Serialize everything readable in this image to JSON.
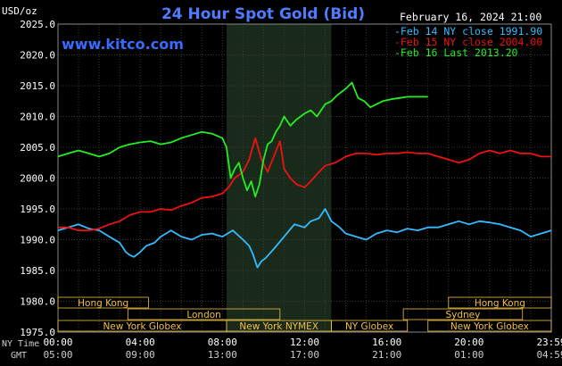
{
  "header": {
    "units_label": "USD/oz",
    "title": "24 Hour Spot Gold (Bid)",
    "date_label": "February 16, 2024 21:00",
    "site_label": "www.kitco.com"
  },
  "colors": {
    "background": "#000000",
    "plot_background": "#000000",
    "market_shade": "#1a2a1a",
    "grid": "#3a3a3a",
    "axis_text": "#ffffff",
    "title": "#4f7bff",
    "site": "#3a6bff",
    "session_text": "#f0c040",
    "session_border": "#f0c040",
    "feb14": "#33bbff",
    "feb15": "#ee1111",
    "feb16": "#22ee22"
  },
  "chart_data": {
    "type": "line",
    "ylim": [
      1975,
      2025
    ],
    "xlim": [
      0,
      24
    ],
    "y_ticks": [
      {
        "value": 2025,
        "label": "2025.0"
      },
      {
        "value": 2020,
        "label": "2020.0"
      },
      {
        "value": 2015,
        "label": "2015.0"
      },
      {
        "value": 2010,
        "label": "2010.0"
      },
      {
        "value": 2005,
        "label": "2005.0"
      },
      {
        "value": 2000,
        "label": "2000.0"
      },
      {
        "value": 1995,
        "label": "1995.0"
      },
      {
        "value": 1990,
        "label": "1990.0"
      },
      {
        "value": 1985,
        "label": "1985.0"
      },
      {
        "value": 1980,
        "label": "1980.0"
      },
      {
        "value": 1975,
        "label": "1975.0"
      }
    ],
    "x_ticks_ny": [
      {
        "value": 0,
        "label": "00:00"
      },
      {
        "value": 4,
        "label": "04:00"
      },
      {
        "value": 8,
        "label": "08:00"
      },
      {
        "value": 12,
        "label": "12:00"
      },
      {
        "value": 16,
        "label": "16:00"
      },
      {
        "value": 20,
        "label": "20:00"
      },
      {
        "value": 24,
        "label": "23:59"
      }
    ],
    "x_ticks_gmt": [
      {
        "value": 0,
        "label": "05:00"
      },
      {
        "value": 4,
        "label": "09:00"
      },
      {
        "value": 8,
        "label": "13:00"
      },
      {
        "value": 12,
        "label": "17:00"
      },
      {
        "value": 16,
        "label": "21:00"
      },
      {
        "value": 20,
        "label": "01:00"
      },
      {
        "value": 24,
        "label": "04:59"
      }
    ],
    "x_row_labels": {
      "ny": "NY Time",
      "gmt": "GMT"
    },
    "market_hours": [
      8.2,
      13.3
    ],
    "legend": [
      {
        "label": "Feb 14 NY close 1991.90",
        "color_key": "feb14"
      },
      {
        "label": "Feb 15 NY close 2004.00",
        "color_key": "feb15"
      },
      {
        "label": "Feb 16 Last 2013.20",
        "color_key": "feb16"
      }
    ],
    "sessions": [
      {
        "label": "Hong Kong",
        "start": 0,
        "end": 4.4,
        "row": 0
      },
      {
        "label": "Hong Kong",
        "start": 19.0,
        "end": 24,
        "row": 0
      },
      {
        "label": "London",
        "start": 3.4,
        "end": 10.8,
        "row": 1
      },
      {
        "label": "Sydney",
        "start": 16.8,
        "end": 22.6,
        "row": 1
      },
      {
        "label": "New York Globex",
        "start": 0,
        "end": 8.2,
        "row": 2
      },
      {
        "label": "New York NYMEX",
        "start": 8.2,
        "end": 13.3,
        "row": 2
      },
      {
        "label": "NY Globex",
        "start": 13.3,
        "end": 17.0,
        "row": 2
      },
      {
        "label": "New York Globex",
        "start": 18.0,
        "end": 24,
        "row": 2
      }
    ],
    "series": [
      {
        "name": "Feb 14",
        "color_key": "feb14",
        "x": [
          0,
          0.5,
          1,
          1.5,
          2,
          2.5,
          3,
          3.3,
          3.5,
          3.7,
          4,
          4.3,
          4.7,
          5,
          5.5,
          6,
          6.5,
          7,
          7.5,
          8,
          8.5,
          9,
          9.3,
          9.5,
          9.7,
          9.9,
          10.1,
          10.5,
          11,
          11.5,
          12,
          12.3,
          12.7,
          13,
          13.3,
          13.7,
          14,
          14.5,
          15,
          15.5,
          16,
          16.5,
          17,
          17.5,
          18,
          18.5,
          19,
          19.5,
          20,
          20.5,
          21,
          21.5,
          22,
          22.5,
          23,
          23.5,
          24
        ],
        "y": [
          1991.5,
          1992.0,
          1992.5,
          1991.8,
          1991.5,
          1990.5,
          1989.5,
          1988.0,
          1987.5,
          1987.2,
          1988.0,
          1989.0,
          1989.5,
          1990.5,
          1991.5,
          1990.5,
          1990.0,
          1990.8,
          1991.0,
          1990.5,
          1991.5,
          1990.0,
          1989.0,
          1987.5,
          1985.5,
          1986.5,
          1987.0,
          1988.5,
          1990.5,
          1992.5,
          1992.0,
          1993.0,
          1993.5,
          1995.0,
          1993.0,
          1992.0,
          1991.0,
          1990.5,
          1990.0,
          1991.0,
          1991.5,
          1991.2,
          1991.8,
          1991.5,
          1992.0,
          1992.0,
          1992.5,
          1993.0,
          1992.5,
          1993.0,
          1992.8,
          1992.5,
          1992.0,
          1991.5,
          1990.5,
          1991.0,
          1991.5
        ]
      },
      {
        "name": "Feb 15",
        "color_key": "feb15",
        "x": [
          0,
          0.5,
          1,
          1.5,
          2,
          2.5,
          3,
          3.5,
          4,
          4.5,
          5,
          5.5,
          6,
          6.5,
          7,
          7.5,
          8,
          8.3,
          8.6,
          9,
          9.3,
          9.6,
          9.9,
          10.2,
          10.5,
          10.8,
          11,
          11.3,
          11.6,
          12,
          12.3,
          12.7,
          13,
          13.5,
          14,
          14.5,
          15,
          15.5,
          16,
          16.5,
          17,
          17.5,
          18,
          18.5,
          19,
          19.5,
          20,
          20.5,
          21,
          21.5,
          22,
          22.5,
          23,
          23.5,
          24
        ],
        "y": [
          1992.0,
          1992.0,
          1991.5,
          1991.5,
          1991.8,
          1992.5,
          1993.0,
          1994.0,
          1994.5,
          1994.5,
          1995.0,
          1994.8,
          1995.5,
          1996.0,
          1996.8,
          1997.0,
          1997.5,
          1998.5,
          2000.0,
          2001.0,
          2003.0,
          2006.5,
          2003.0,
          2001.0,
          2003.5,
          2006.0,
          2001.5,
          2000.0,
          1999.0,
          1998.5,
          1999.5,
          2001.0,
          2002.0,
          2002.5,
          2003.5,
          2004.0,
          2004.0,
          2003.8,
          2004.0,
          2004.0,
          2004.2,
          2004.0,
          2004.0,
          2003.5,
          2003.0,
          2002.5,
          2003.0,
          2004.0,
          2004.5,
          2004.0,
          2004.5,
          2004.0,
          2004.0,
          2003.5,
          2003.5
        ]
      },
      {
        "name": "Feb 16",
        "color_key": "feb16",
        "x": [
          0,
          0.5,
          1,
          1.5,
          2,
          2.5,
          3,
          3.5,
          4,
          4.5,
          5,
          5.5,
          6,
          6.5,
          7,
          7.5,
          8,
          8.2,
          8.4,
          8.6,
          8.8,
          9.0,
          9.2,
          9.4,
          9.6,
          9.8,
          10.0,
          10.2,
          10.4,
          10.6,
          10.8,
          11.0,
          11.3,
          11.6,
          12,
          12.3,
          12.6,
          13,
          13.3,
          13.6,
          14,
          14.3,
          14.6,
          14.9,
          15.2,
          15.5,
          15.8,
          16.2,
          16.6,
          17,
          17.5,
          18
        ],
        "y": [
          2003.5,
          2004.0,
          2004.5,
          2004.0,
          2003.5,
          2004.0,
          2005.0,
          2005.5,
          2005.8,
          2006.0,
          2005.5,
          2005.8,
          2006.5,
          2007.0,
          2007.5,
          2007.2,
          2006.5,
          2005.0,
          2000.0,
          2001.5,
          2002.5,
          2000.0,
          1998.0,
          1999.5,
          1997.0,
          1999.0,
          2003.0,
          2005.5,
          2006.0,
          2007.5,
          2008.5,
          2010.0,
          2008.5,
          2009.5,
          2010.5,
          2011.0,
          2010.0,
          2012.0,
          2012.5,
          2013.5,
          2014.5,
          2015.5,
          2013.0,
          2012.5,
          2011.5,
          2012.0,
          2012.5,
          2012.8,
          2013.0,
          2013.2,
          2013.2,
          2013.2
        ]
      }
    ]
  }
}
